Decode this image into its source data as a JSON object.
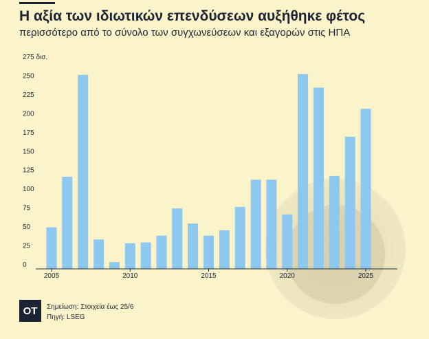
{
  "header": {
    "title": "Η αξία των ιδιωτικών επενδύσεων αυξήθηκε φέτος",
    "subtitle": "περισσότερο από το σύνολο των συγχωνεύσεων και εξαγορών στις ΗΠΑ"
  },
  "footer": {
    "logo": "OT",
    "note": "Σημείωση: Στοιχεία έως 25/6",
    "source": "Πηγή: LSEG"
  },
  "colors": {
    "bar": "#8ec8ef",
    "background": "#fbf3c9",
    "text": "#1c2434"
  },
  "chart_data": {
    "type": "bar",
    "x": [
      2005,
      2006,
      2007,
      2008,
      2009,
      2010,
      2011,
      2012,
      2013,
      2014,
      2015,
      2016,
      2017,
      2018,
      2019,
      2020,
      2021,
      2022,
      2023,
      2024,
      2025
    ],
    "values": [
      55,
      122,
      257,
      39,
      9,
      34,
      35,
      44,
      80,
      60,
      44,
      51,
      82,
      118,
      118,
      72,
      258,
      240,
      123,
      175,
      212
    ],
    "y_tick_labels": [
      "0",
      "25",
      "50",
      "75",
      "100",
      "125",
      "150",
      "175",
      "200",
      "225",
      "250",
      "275 δισ."
    ],
    "x_tick_labels": [
      "2005",
      "2010",
      "2015",
      "2020",
      "2025"
    ],
    "ylim": [
      0,
      275
    ],
    "grid": false
  }
}
